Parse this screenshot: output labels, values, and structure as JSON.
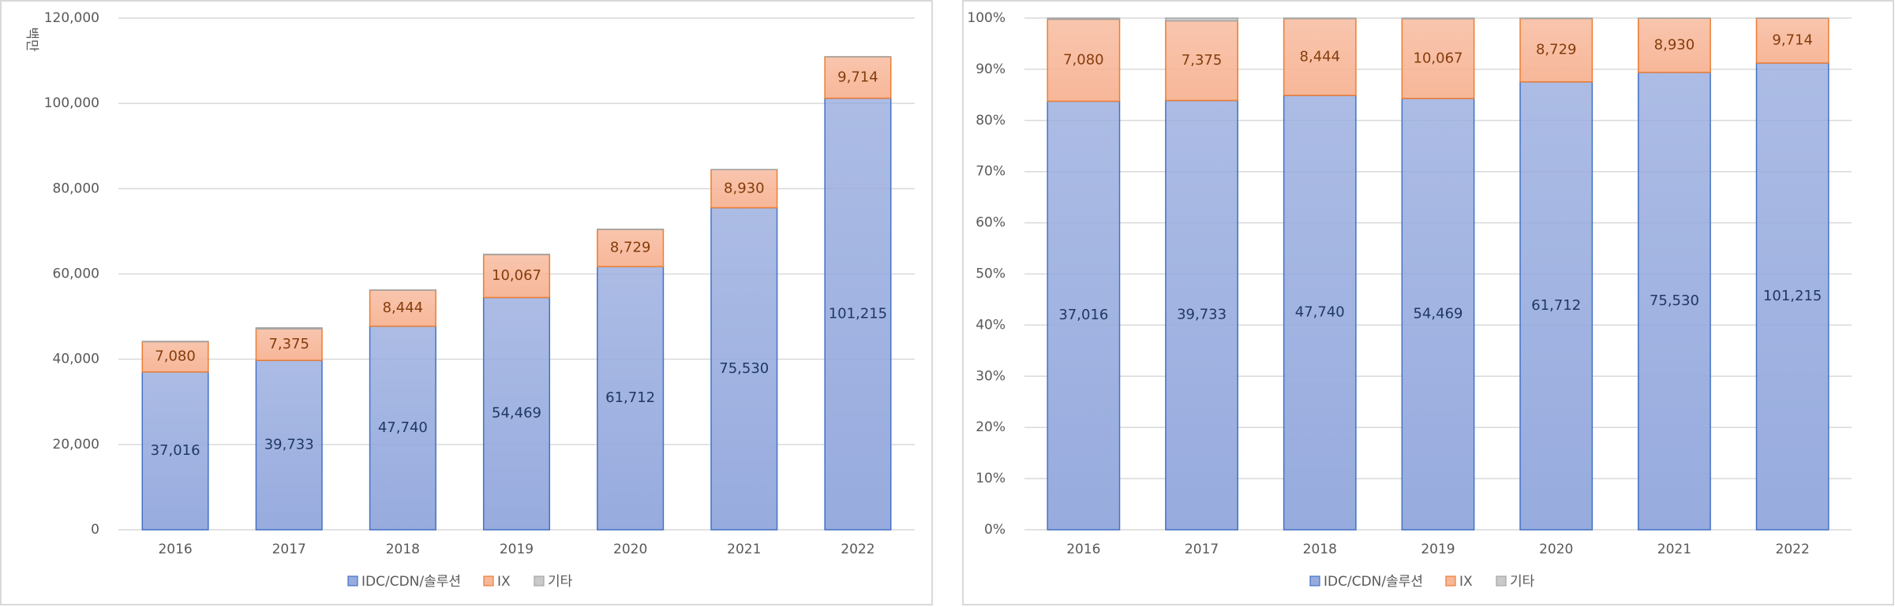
{
  "chart_data": [
    {
      "type": "bar",
      "stacking": "normal",
      "y_label": "백만",
      "categories": [
        "2016",
        "2017",
        "2018",
        "2019",
        "2020",
        "2021",
        "2022"
      ],
      "series": [
        {
          "name": "IDC/CDN/솔루션",
          "color": "#97abde",
          "edge_color": "#4472c4",
          "label_color": "#203864",
          "values": [
            37016,
            39733,
            47740,
            54469,
            61712,
            75530,
            101215
          ],
          "value_labels": [
            "37,016",
            "39,733",
            "47,740",
            "54,469",
            "61,712",
            "75,530",
            "101,215"
          ]
        },
        {
          "name": "IX",
          "color": "#f7b799",
          "edge_color": "#ed7d31",
          "label_color": "#843c0c",
          "values": [
            7080,
            7375,
            8444,
            10067,
            8729,
            8930,
            9714
          ],
          "value_labels": [
            "7,080",
            "7,375",
            "8,444",
            "10,067",
            "8,729",
            "8,930",
            "9,714"
          ]
        },
        {
          "name": "기타",
          "color": "#c9c9c9",
          "edge_color": "#a5a5a5",
          "values": [
            100,
            250,
            50,
            80,
            50,
            30,
            20
          ]
        }
      ],
      "ylim": [
        0,
        120000
      ],
      "yticks": [
        0,
        {
          "value": 20000,
          "label": "20,000"
        },
        {
          "value": 40000,
          "label": "40,000"
        },
        {
          "value": 60000,
          "label": "60,000"
        },
        {
          "value": 80000,
          "label": "80,000"
        },
        {
          "value": 100000,
          "label": "100,000"
        },
        {
          "value": 120000,
          "label": "120,000"
        }
      ],
      "grid": true,
      "legend": "bottom"
    },
    {
      "type": "bar",
      "stacking": "percent",
      "categories": [
        "2016",
        "2017",
        "2018",
        "2019",
        "2020",
        "2021",
        "2022"
      ],
      "series": [
        {
          "name": "IDC/CDN/솔루션",
          "color": "#97abde",
          "edge_color": "#4472c4",
          "label_color": "#203864",
          "values": [
            37016,
            39733,
            47740,
            54469,
            61712,
            75530,
            101215
          ],
          "value_labels": [
            "37,016",
            "39,733",
            "47,740",
            "54,469",
            "61,712",
            "75,530",
            "101,215"
          ]
        },
        {
          "name": "IX",
          "color": "#f7b799",
          "edge_color": "#ed7d31",
          "label_color": "#843c0c",
          "values": [
            7080,
            7375,
            8444,
            10067,
            8729,
            8930,
            9714
          ],
          "value_labels": [
            "7,080",
            "7,375",
            "8,444",
            "10,067",
            "8,729",
            "8,930",
            "9,714"
          ]
        },
        {
          "name": "기타",
          "color": "#c9c9c9",
          "edge_color": "#a5a5a5",
          "values": [
            100,
            250,
            50,
            80,
            50,
            30,
            20
          ]
        }
      ],
      "ylim": [
        0,
        100
      ],
      "yticks": [
        {
          "value": 0,
          "label": "0%"
        },
        {
          "value": 10,
          "label": "10%"
        },
        {
          "value": 20,
          "label": "20%"
        },
        {
          "value": 30,
          "label": "30%"
        },
        {
          "value": 40,
          "label": "40%"
        },
        {
          "value": 50,
          "label": "50%"
        },
        {
          "value": 60,
          "label": "60%"
        },
        {
          "value": 70,
          "label": "70%"
        },
        {
          "value": 80,
          "label": "80%"
        },
        {
          "value": 90,
          "label": "90%"
        },
        {
          "value": 100,
          "label": "100%"
        }
      ],
      "grid": true,
      "legend": "bottom"
    }
  ]
}
